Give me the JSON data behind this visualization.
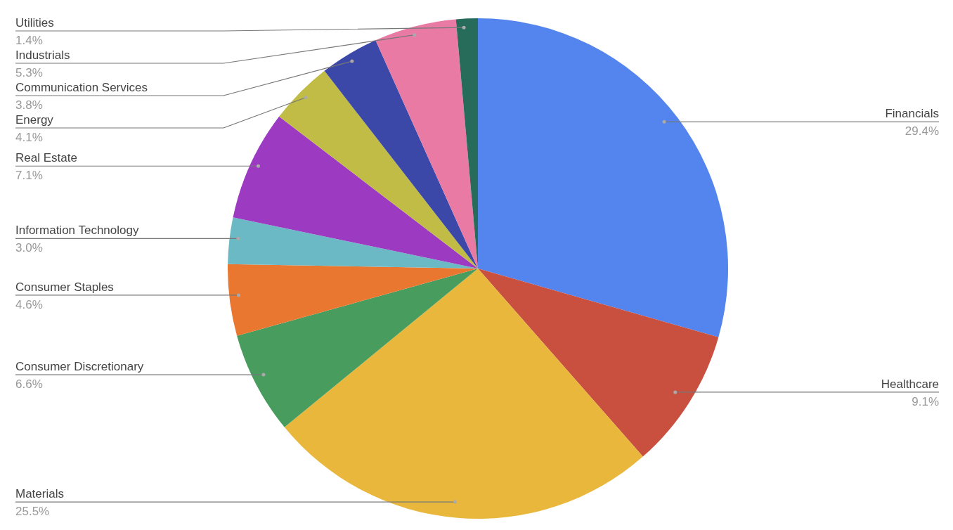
{
  "chart_data": {
    "type": "pie",
    "categories": [
      "Financials",
      "Healthcare",
      "Materials",
      "Consumer Discretionary",
      "Consumer Staples",
      "Information Technology",
      "Real Estate",
      "Energy",
      "Communication Services",
      "Industrials",
      "Utilities"
    ],
    "values": [
      29.4,
      9.1,
      25.5,
      6.6,
      4.6,
      3.0,
      7.1,
      4.1,
      3.8,
      5.3,
      1.4
    ],
    "value_labels": [
      "29.4%",
      "9.1%",
      "25.5%",
      "6.6%",
      "4.6%",
      "3.0%",
      "7.1%",
      "4.1%",
      "3.8%",
      "5.3%",
      "1.4%"
    ],
    "colors": [
      "#5484ed",
      "#c94f3f",
      "#e8b73c",
      "#479c5e",
      "#ea7730",
      "#6bb9c4",
      "#9c3ac1",
      "#c1bc45",
      "#3c48a8",
      "#e87aa4",
      "#276b5a"
    ]
  }
}
